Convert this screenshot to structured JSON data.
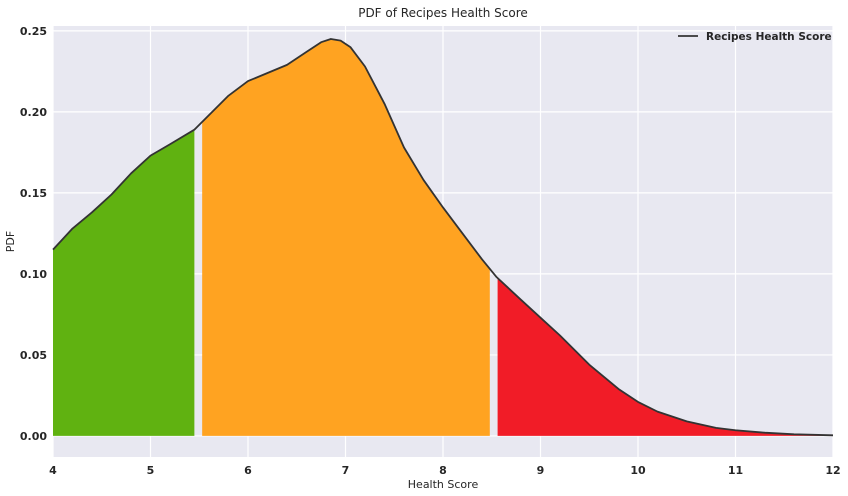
{
  "chart_data": {
    "type": "area",
    "title": "PDF of Recipes Health Score",
    "xlabel": "Health Score",
    "ylabel": "PDF",
    "xlim": [
      4,
      12
    ],
    "ylim": [
      -0.013,
      0.253
    ],
    "xticks": [
      "4",
      "5",
      "6",
      "7",
      "8",
      "9",
      "10",
      "11",
      "12"
    ],
    "yticks": [
      "0.00",
      "0.05",
      "0.10",
      "0.15",
      "0.20",
      "0.25"
    ],
    "grid": true,
    "legend_position": "top-right",
    "series": [
      {
        "name": "Recipes Health Score",
        "color": "#333333",
        "x": [
          4.0,
          4.2,
          4.4,
          4.6,
          4.8,
          5.0,
          5.2,
          5.45,
          5.8,
          6.0,
          6.2,
          6.4,
          6.6,
          6.75,
          6.85,
          6.95,
          7.05,
          7.2,
          7.4,
          7.6,
          7.8,
          8.0,
          8.2,
          8.4,
          8.55,
          8.8,
          9.0,
          9.2,
          9.5,
          9.8,
          10.0,
          10.2,
          10.5,
          10.8,
          11.0,
          11.3,
          11.6,
          12.0
        ],
        "y": [
          0.115,
          0.128,
          0.138,
          0.149,
          0.162,
          0.173,
          0.18,
          0.189,
          0.21,
          0.219,
          0.224,
          0.229,
          0.237,
          0.243,
          0.245,
          0.244,
          0.24,
          0.228,
          0.205,
          0.178,
          0.158,
          0.141,
          0.125,
          0.109,
          0.098,
          0.084,
          0.073,
          0.062,
          0.044,
          0.029,
          0.021,
          0.015,
          0.009,
          0.005,
          0.0035,
          0.002,
          0.001,
          0.0004
        ]
      }
    ],
    "bands": [
      {
        "from": 4.0,
        "to": 5.45,
        "color": "#60b211"
      },
      {
        "from": 5.53,
        "to": 8.48,
        "color": "#ffa321"
      },
      {
        "from": 8.56,
        "to": 12.0,
        "color": "#f11c27"
      }
    ]
  }
}
